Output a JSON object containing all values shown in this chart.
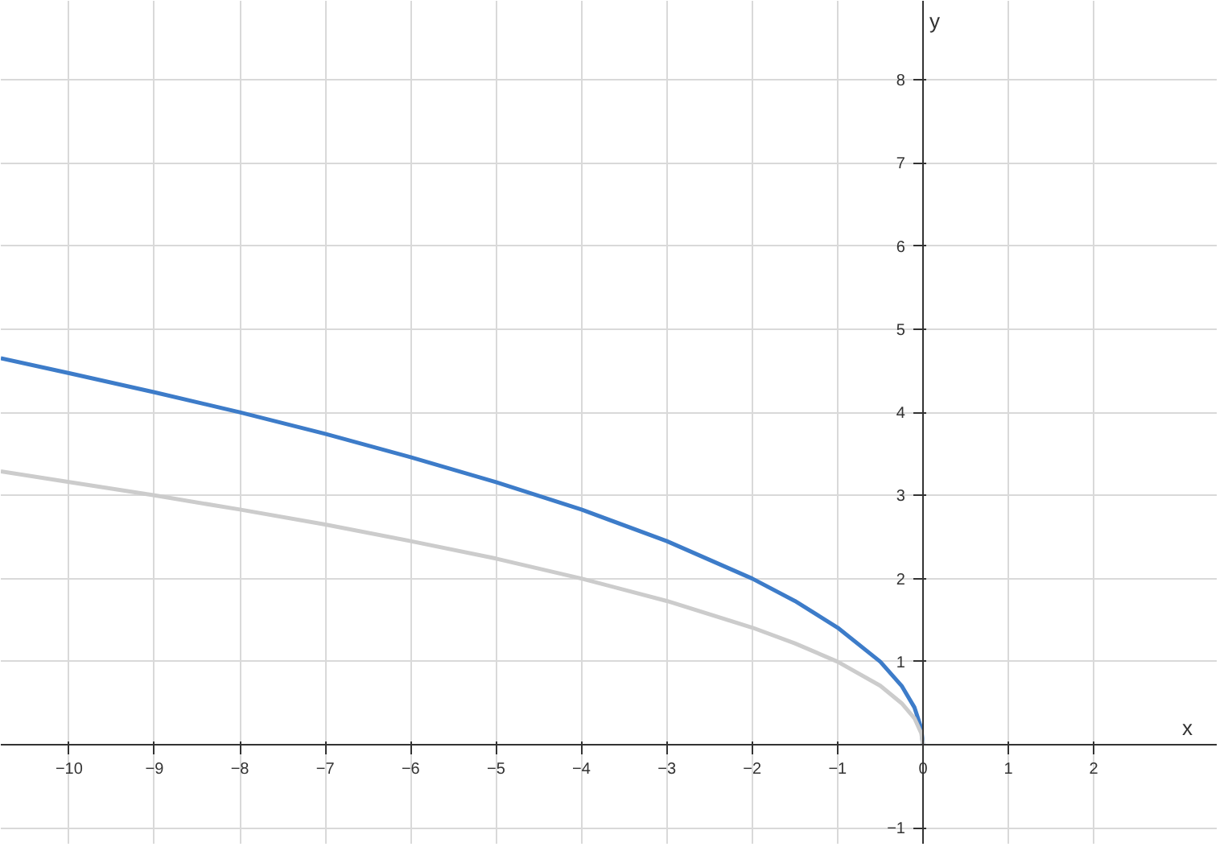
{
  "chart_data": {
    "type": "line",
    "xlabel": "x",
    "ylabel": "y",
    "x": [
      -10.8,
      -10,
      -9,
      -8,
      -7,
      -6,
      -5,
      -4,
      -3,
      -2,
      -1.5,
      -1,
      -0.5,
      -0.25,
      -0.1,
      -0.02,
      0
    ],
    "series": [
      {
        "color": "#3d7cc9",
        "values": [
          4.65,
          4.47,
          4.24,
          4,
          3.74,
          3.46,
          3.16,
          2.83,
          2.45,
          2,
          1.73,
          1.41,
          1,
          0.71,
          0.45,
          0.2,
          0
        ]
      },
      {
        "color": "#cccccc",
        "values": [
          3.29,
          3.16,
          3,
          2.83,
          2.65,
          2.45,
          2.24,
          2,
          1.73,
          1.41,
          1.22,
          1,
          0.71,
          0.5,
          0.32,
          0.14,
          0
        ]
      }
    ],
    "xlim": [
      -10.8,
      3.45
    ],
    "ylim": [
      -1.2,
      8.95
    ],
    "xticks": [
      -10,
      -9,
      -8,
      -7,
      -6,
      -5,
      -4,
      -3,
      -2,
      -1,
      0,
      1,
      2
    ],
    "yticks": [
      -1,
      1,
      2,
      3,
      4,
      5,
      6,
      7,
      8
    ],
    "grid": true,
    "marker": "none",
    "line_style": "solid"
  }
}
